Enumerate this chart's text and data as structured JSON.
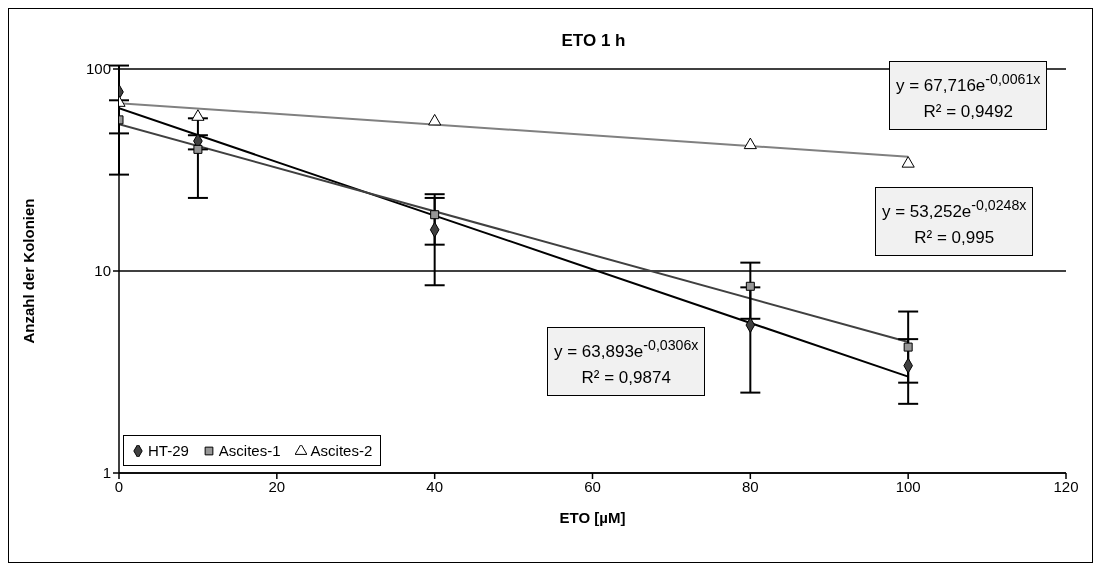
{
  "chart_data": {
    "type": "scatter",
    "title": "ETO 1 h",
    "xlabel": "ETO [µM]",
    "ylabel": "Anzahl der Kolonien",
    "xlim": [
      0,
      120
    ],
    "xticks": [
      0,
      20,
      40,
      60,
      80,
      100,
      120
    ],
    "ylim": [
      1,
      100
    ],
    "yticks": [
      1,
      10,
      100
    ],
    "log": "y",
    "grid": "y",
    "legend": "bottom left",
    "series": [
      {
        "name": "HT-29",
        "marker": "diamond",
        "color": "#404040",
        "x": [
          0,
          10,
          40,
          80,
          100
        ],
        "values": [
          77,
          44,
          16,
          5.4,
          3.4
        ],
        "errors": [
          [
            30,
            104
          ],
          [
            40,
            47
          ],
          [
            8.5,
            23
          ],
          [
            2.5,
            8.3
          ],
          [
            2.2,
            4.6
          ]
        ]
      },
      {
        "name": "Ascites-1",
        "marker": "square",
        "color": "#969696",
        "x": [
          0,
          10,
          40,
          80,
          100
        ],
        "values": [
          56,
          40,
          19,
          8.4,
          4.2
        ],
        "errors": [
          [
            48,
            70
          ],
          [
            23,
            57
          ],
          [
            13.5,
            24
          ],
          [
            5.8,
            11
          ],
          [
            2.8,
            6.3
          ]
        ]
      },
      {
        "name": "Ascites-2",
        "marker": "triangle",
        "color": "#ffffff",
        "x": [
          0,
          10,
          40,
          80,
          100
        ],
        "values": [
          68,
          58,
          55,
          42,
          34
        ]
      },
      {
        "type": "line",
        "color": "#000000",
        "x": [
          0,
          100
        ],
        "values": [
          63.9,
          3.0
        ]
      },
      {
        "type": "line",
        "color": "#404040",
        "x": [
          0,
          100
        ],
        "values": [
          53.3,
          4.45
        ]
      },
      {
        "type": "line",
        "color": "#808080",
        "x": [
          0,
          100
        ],
        "values": [
          67.7,
          36.8
        ]
      }
    ],
    "annotations": [
      "y = 67,716e$^{-0,0061x}$",
      "R² = 0,9492",
      "y = 53,252e$^{-0,0248x}$",
      "R² = 0,995",
      "y = 63,893e$^{-0,0306x}$",
      "R² = 0,9874"
    ]
  }
}
